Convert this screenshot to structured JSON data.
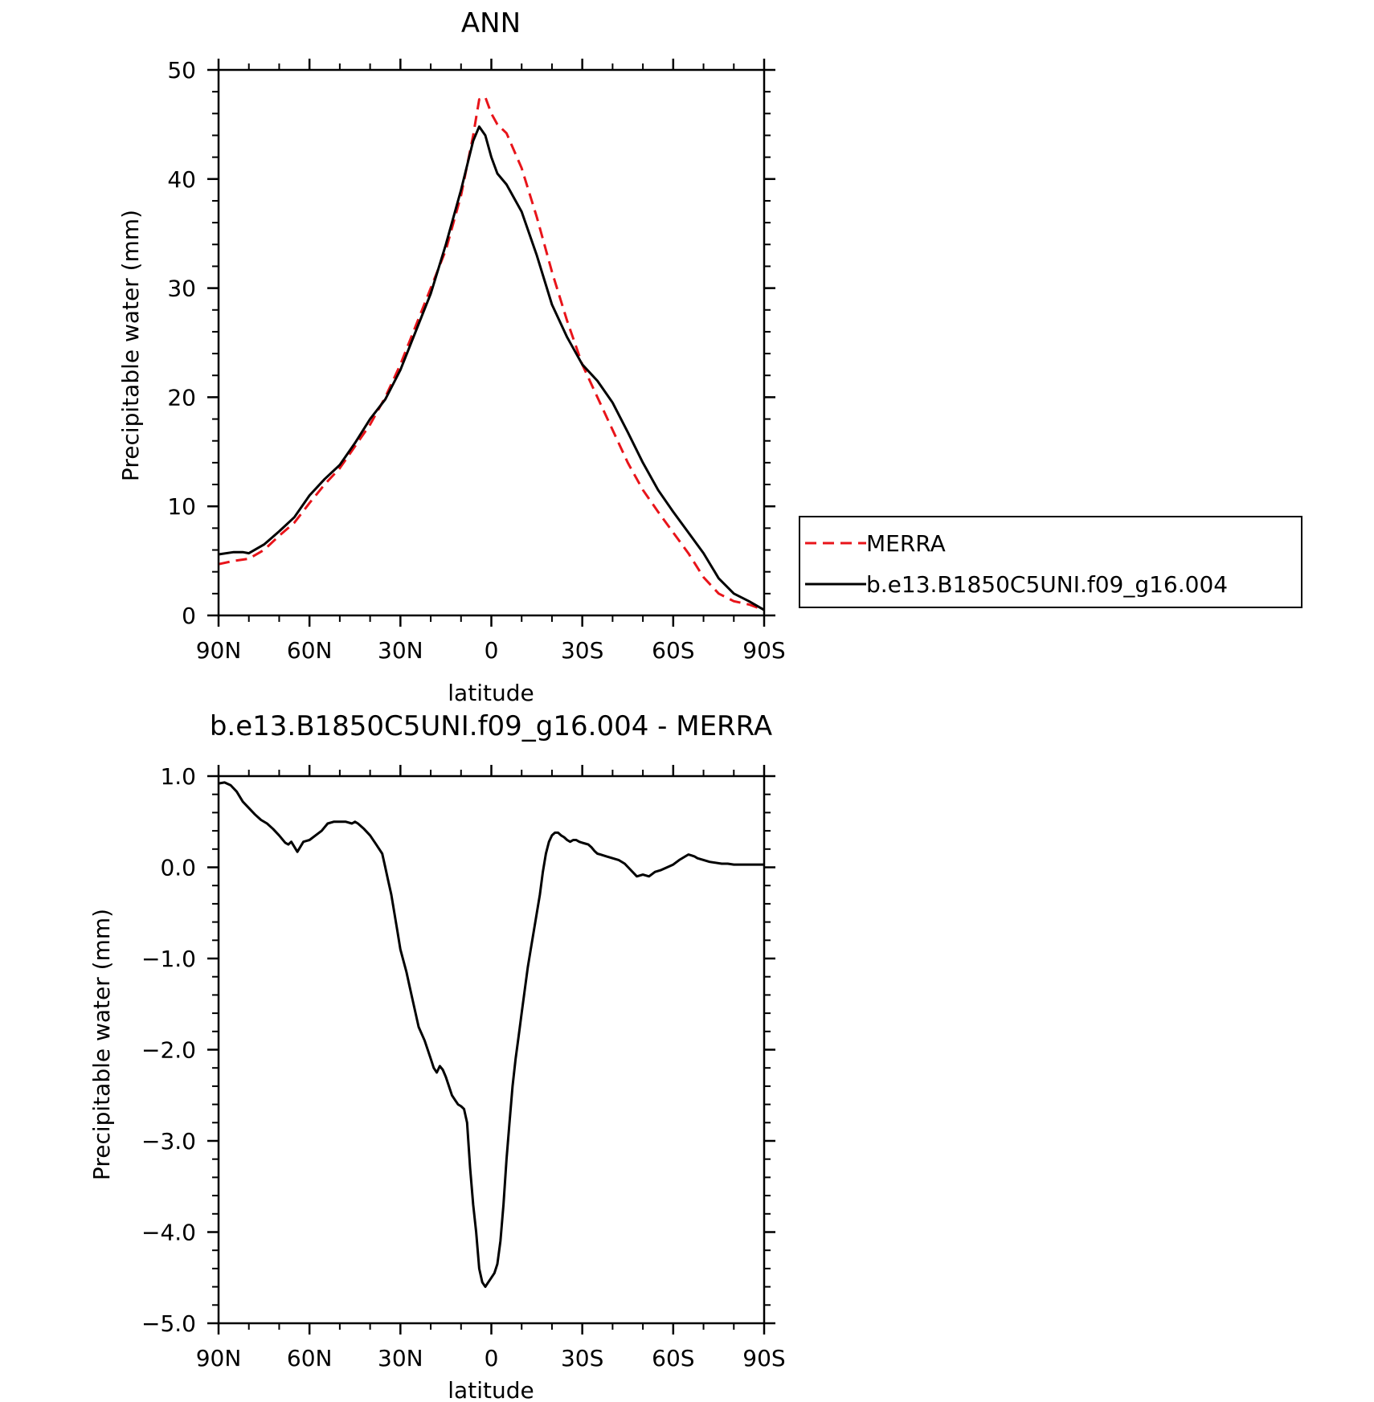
{
  "chart_data": [
    {
      "type": "line",
      "title": "ANN",
      "xlabel": "latitude",
      "ylabel": "Precipitable water (mm)",
      "xlim": [
        90,
        -90
      ],
      "ylim": [
        0,
        50
      ],
      "xticks": [
        90,
        60,
        30,
        0,
        -30,
        -60,
        -90
      ],
      "xticklabels": [
        "90N",
        "60N",
        "30N",
        "0",
        "30S",
        "60S",
        "90S"
      ],
      "yticks": [
        0,
        10,
        20,
        30,
        40,
        50
      ],
      "yticklabels": [
        "0",
        "10",
        "20",
        "30",
        "40",
        "50"
      ],
      "legend_position": "right",
      "series": [
        {
          "name": "MERRA",
          "color": "#e8141a",
          "dash": "dashed",
          "x": [
            90,
            85,
            80,
            75,
            70,
            65,
            60,
            55,
            50,
            45,
            40,
            35,
            30,
            25,
            20,
            15,
            10,
            6,
            4,
            2,
            0,
            -2,
            -5,
            -10,
            -15,
            -20,
            -25,
            -30,
            -35,
            -40,
            -45,
            -50,
            -55,
            -60,
            -65,
            -70,
            -75,
            -80,
            -85,
            -90
          ],
          "y": [
            4.7,
            5.0,
            5.2,
            6.0,
            7.3,
            8.5,
            10.3,
            12.0,
            13.5,
            15.5,
            17.5,
            20.0,
            23.0,
            26.5,
            30.0,
            33.5,
            38.5,
            44.0,
            47.3,
            47.5,
            46.0,
            45.0,
            44.2,
            41.0,
            36.5,
            31.5,
            27.0,
            23.0,
            20.0,
            17.0,
            14.0,
            11.5,
            9.5,
            7.6,
            5.7,
            3.5,
            2.0,
            1.3,
            1.0,
            0.5
          ]
        },
        {
          "name": "b.e13.B1850C5UNI.f09_g16.004",
          "color": "#000000",
          "dash": "solid",
          "x": [
            90,
            85,
            82,
            80,
            75,
            70,
            65,
            60,
            55,
            50,
            45,
            40,
            35,
            30,
            25,
            20,
            15,
            10,
            6,
            4,
            2,
            0,
            -2,
            -5,
            -10,
            -15,
            -20,
            -25,
            -30,
            -35,
            -40,
            -45,
            -50,
            -55,
            -60,
            -65,
            -70,
            -75,
            -80,
            -85,
            -90
          ],
          "y": [
            5.6,
            5.8,
            5.8,
            5.7,
            6.5,
            7.7,
            9.0,
            11.0,
            12.5,
            13.8,
            15.8,
            18.0,
            19.8,
            22.5,
            26.0,
            29.5,
            34.0,
            39.0,
            43.5,
            44.8,
            44.0,
            42.0,
            40.5,
            39.5,
            37.0,
            33.0,
            28.5,
            25.5,
            23.0,
            21.5,
            19.5,
            16.8,
            14.0,
            11.5,
            9.5,
            7.6,
            5.7,
            3.4,
            2.0,
            1.3,
            0.5
          ]
        }
      ]
    },
    {
      "type": "line",
      "title": "b.e13.B1850C5UNI.f09_g16.004 - MERRA",
      "xlabel": "latitude",
      "ylabel": "Precipitable water (mm)",
      "xlim": [
        90,
        -90
      ],
      "ylim": [
        -5.0,
        1.0
      ],
      "xticks": [
        90,
        60,
        30,
        0,
        -30,
        -60,
        -90
      ],
      "xticklabels": [
        "90N",
        "60N",
        "30N",
        "0",
        "30S",
        "60S",
        "90S"
      ],
      "yticks": [
        1.0,
        0.0,
        -1.0,
        -2.0,
        -3.0,
        -4.0,
        -5.0
      ],
      "yticklabels": [
        "1.0",
        "0.0",
        "−1.0",
        "−2.0",
        "−3.0",
        "−4.0",
        "−5.0"
      ],
      "series": [
        {
          "color": "#000000",
          "dash": "solid",
          "x": [
            90,
            88,
            86,
            84,
            82,
            80,
            78,
            76,
            74,
            72,
            70,
            68,
            67,
            66,
            64,
            62,
            60,
            58,
            56,
            54,
            52,
            50,
            48,
            46,
            45,
            44,
            42,
            40,
            38,
            36,
            35,
            34,
            33,
            32,
            31,
            30,
            28,
            27,
            26,
            25,
            24,
            22,
            20,
            19,
            18,
            17,
            16,
            15,
            14,
            13,
            12,
            11,
            10,
            9,
            8,
            7,
            6,
            5,
            4,
            3,
            2,
            1,
            0,
            -1,
            -2,
            -3,
            -4,
            -5,
            -6,
            -7,
            -8,
            -9,
            -10,
            -11,
            -12,
            -13,
            -14,
            -15,
            -16,
            -17,
            -18,
            -19,
            -20,
            -21,
            -22,
            -23,
            -24,
            -25,
            -26,
            -27,
            -28,
            -29,
            -30,
            -31,
            -32,
            -33,
            -34,
            -35,
            -36,
            -38,
            -40,
            -42,
            -44,
            -46,
            -48,
            -50,
            -52,
            -54,
            -56,
            -58,
            -60,
            -62,
            -64,
            -65,
            -66,
            -67,
            -68,
            -70,
            -72,
            -74,
            -76,
            -78,
            -80,
            -82,
            -84,
            -86,
            -88,
            -90
          ],
          "y": [
            0.92,
            0.93,
            0.9,
            0.83,
            0.72,
            0.65,
            0.58,
            0.52,
            0.48,
            0.42,
            0.35,
            0.27,
            0.25,
            0.28,
            0.17,
            0.28,
            0.3,
            0.35,
            0.4,
            0.48,
            0.5,
            0.5,
            0.5,
            0.48,
            0.5,
            0.48,
            0.42,
            0.35,
            0.25,
            0.15,
            0.0,
            -0.15,
            -0.3,
            -0.5,
            -0.7,
            -0.9,
            -1.15,
            -1.3,
            -1.45,
            -1.6,
            -1.75,
            -1.9,
            -2.1,
            -2.2,
            -2.25,
            -2.18,
            -2.22,
            -2.3,
            -2.4,
            -2.5,
            -2.55,
            -2.6,
            -2.62,
            -2.65,
            -2.8,
            -3.3,
            -3.7,
            -4.0,
            -4.4,
            -4.55,
            -4.6,
            -4.55,
            -4.5,
            -4.45,
            -4.35,
            -4.1,
            -3.7,
            -3.2,
            -2.8,
            -2.4,
            -2.1,
            -1.85,
            -1.6,
            -1.35,
            -1.1,
            -0.9,
            -0.7,
            -0.5,
            -0.3,
            -0.05,
            0.15,
            0.28,
            0.35,
            0.38,
            0.38,
            0.35,
            0.33,
            0.3,
            0.28,
            0.3,
            0.3,
            0.28,
            0.27,
            0.26,
            0.25,
            0.22,
            0.18,
            0.15,
            0.14,
            0.12,
            0.1,
            0.08,
            0.04,
            -0.03,
            -0.1,
            -0.08,
            -0.1,
            -0.05,
            -0.03,
            0.0,
            0.03,
            0.08,
            0.12,
            0.14,
            0.13,
            0.12,
            0.1,
            0.08,
            0.06,
            0.05,
            0.04,
            0.04,
            0.03,
            0.03,
            0.03,
            0.03,
            0.03,
            0.03
          ]
        }
      ]
    }
  ]
}
